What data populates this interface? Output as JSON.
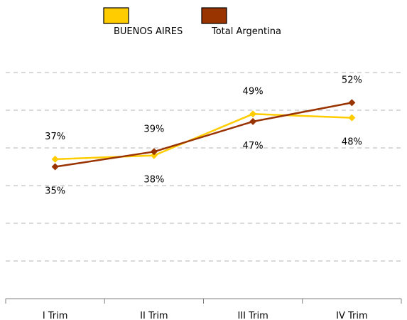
{
  "chart_data": {
    "type": "line",
    "categories": [
      "I Trim",
      "II Trim",
      "III Trim",
      "IV Trim"
    ],
    "series": [
      {
        "name": "BUENOS AIRES",
        "color": "#FFCC00",
        "values": [
          37,
          38,
          49,
          48
        ],
        "labels": [
          "37%",
          "38%",
          "49%",
          "48%"
        ]
      },
      {
        "name": "Total Argentina",
        "color": "#993300",
        "values": [
          35,
          39,
          47,
          52
        ],
        "labels": [
          "35%",
          "39%",
          "47%",
          "52%"
        ]
      }
    ],
    "title": "",
    "xlabel": "",
    "ylabel": "",
    "ylim": [
      0,
      60
    ],
    "grid": true,
    "legend_position": "top-center"
  }
}
